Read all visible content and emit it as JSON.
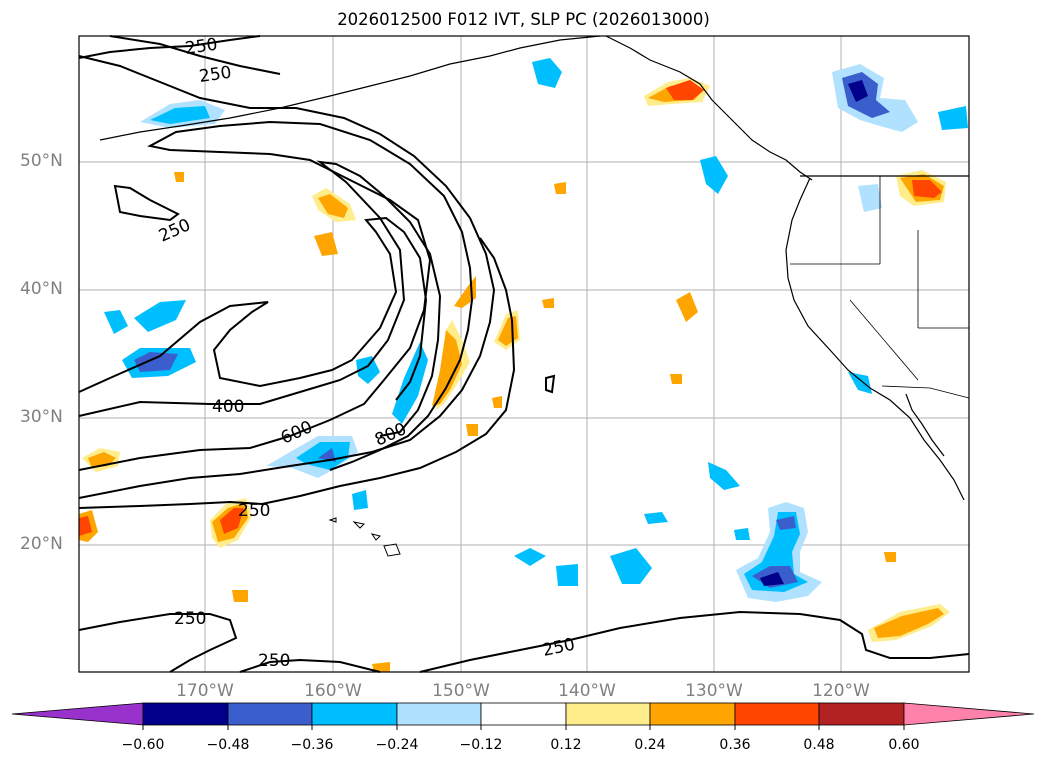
{
  "title": "2026012500 F012 IVT, SLP PC (2026013000)",
  "map": {
    "lat_labels": [
      "50°N",
      "40°N",
      "30°N",
      "20°N"
    ],
    "lon_labels": [
      "170°W",
      "160°W",
      "150°W",
      "140°W",
      "130°W",
      "120°W"
    ],
    "contour_labels": [
      "250",
      "250",
      "250",
      "400",
      "600",
      "800",
      "250",
      "250",
      "250",
      "250"
    ],
    "grid": true
  },
  "colorbar": {
    "tick_labels": [
      "−0.60",
      "−0.48",
      "−0.36",
      "−0.24",
      "−0.12",
      "0.12",
      "0.24",
      "0.36",
      "0.48",
      "0.60"
    ],
    "colors": [
      "#9932cc",
      "#00008b",
      "#3a5fcd",
      "#00bfff",
      "#b0e2ff",
      "#ffffff",
      "#ffec8b",
      "#ffa500",
      "#ff4500",
      "#b22222",
      "#ff82ab"
    ]
  },
  "colors": {
    "gridline": "#b0b0b0",
    "coast": "#000000",
    "tick_label": "#808080"
  }
}
